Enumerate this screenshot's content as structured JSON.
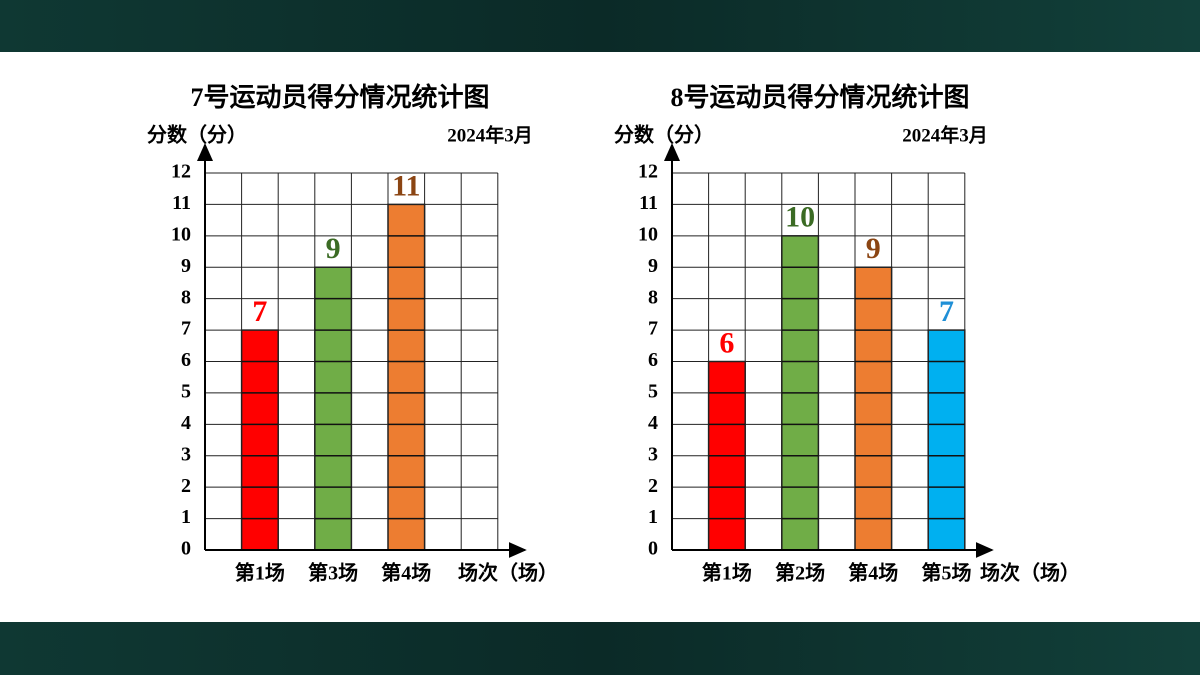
{
  "chart_data": [
    {
      "type": "bar",
      "title": "7号运动员得分情况统计图",
      "y_label": "分数（分）",
      "date": "2024年3月",
      "x_label": "场次（场）",
      "categories": [
        "第1场",
        "第3场",
        "第4场"
      ],
      "values": [
        7,
        9,
        11
      ],
      "colors": [
        "#ff0000",
        "#70ad47",
        "#ed7d31"
      ],
      "label_colors": [
        "#ff0000",
        "#3b6b24",
        "#8b4513"
      ],
      "ylim": [
        0,
        12
      ],
      "yticks": [
        0,
        1,
        2,
        3,
        4,
        5,
        6,
        7,
        8,
        9,
        10,
        11,
        12
      ],
      "grid": true
    },
    {
      "type": "bar",
      "title": "8号运动员得分情况统计图",
      "y_label": "分数（分）",
      "date": "2024年3月",
      "x_label": "场次（场）",
      "categories": [
        "第1场",
        "第2场",
        "第4场",
        "第5场"
      ],
      "values": [
        6,
        10,
        9,
        7
      ],
      "colors": [
        "#ff0000",
        "#70ad47",
        "#ed7d31",
        "#00b0f0"
      ],
      "label_colors": [
        "#ff0000",
        "#3b6b24",
        "#8b4513",
        "#1f8fd6"
      ],
      "ylim": [
        0,
        12
      ],
      "yticks": [
        0,
        1,
        2,
        3,
        4,
        5,
        6,
        7,
        8,
        9,
        10,
        11,
        12
      ],
      "grid": true
    }
  ]
}
